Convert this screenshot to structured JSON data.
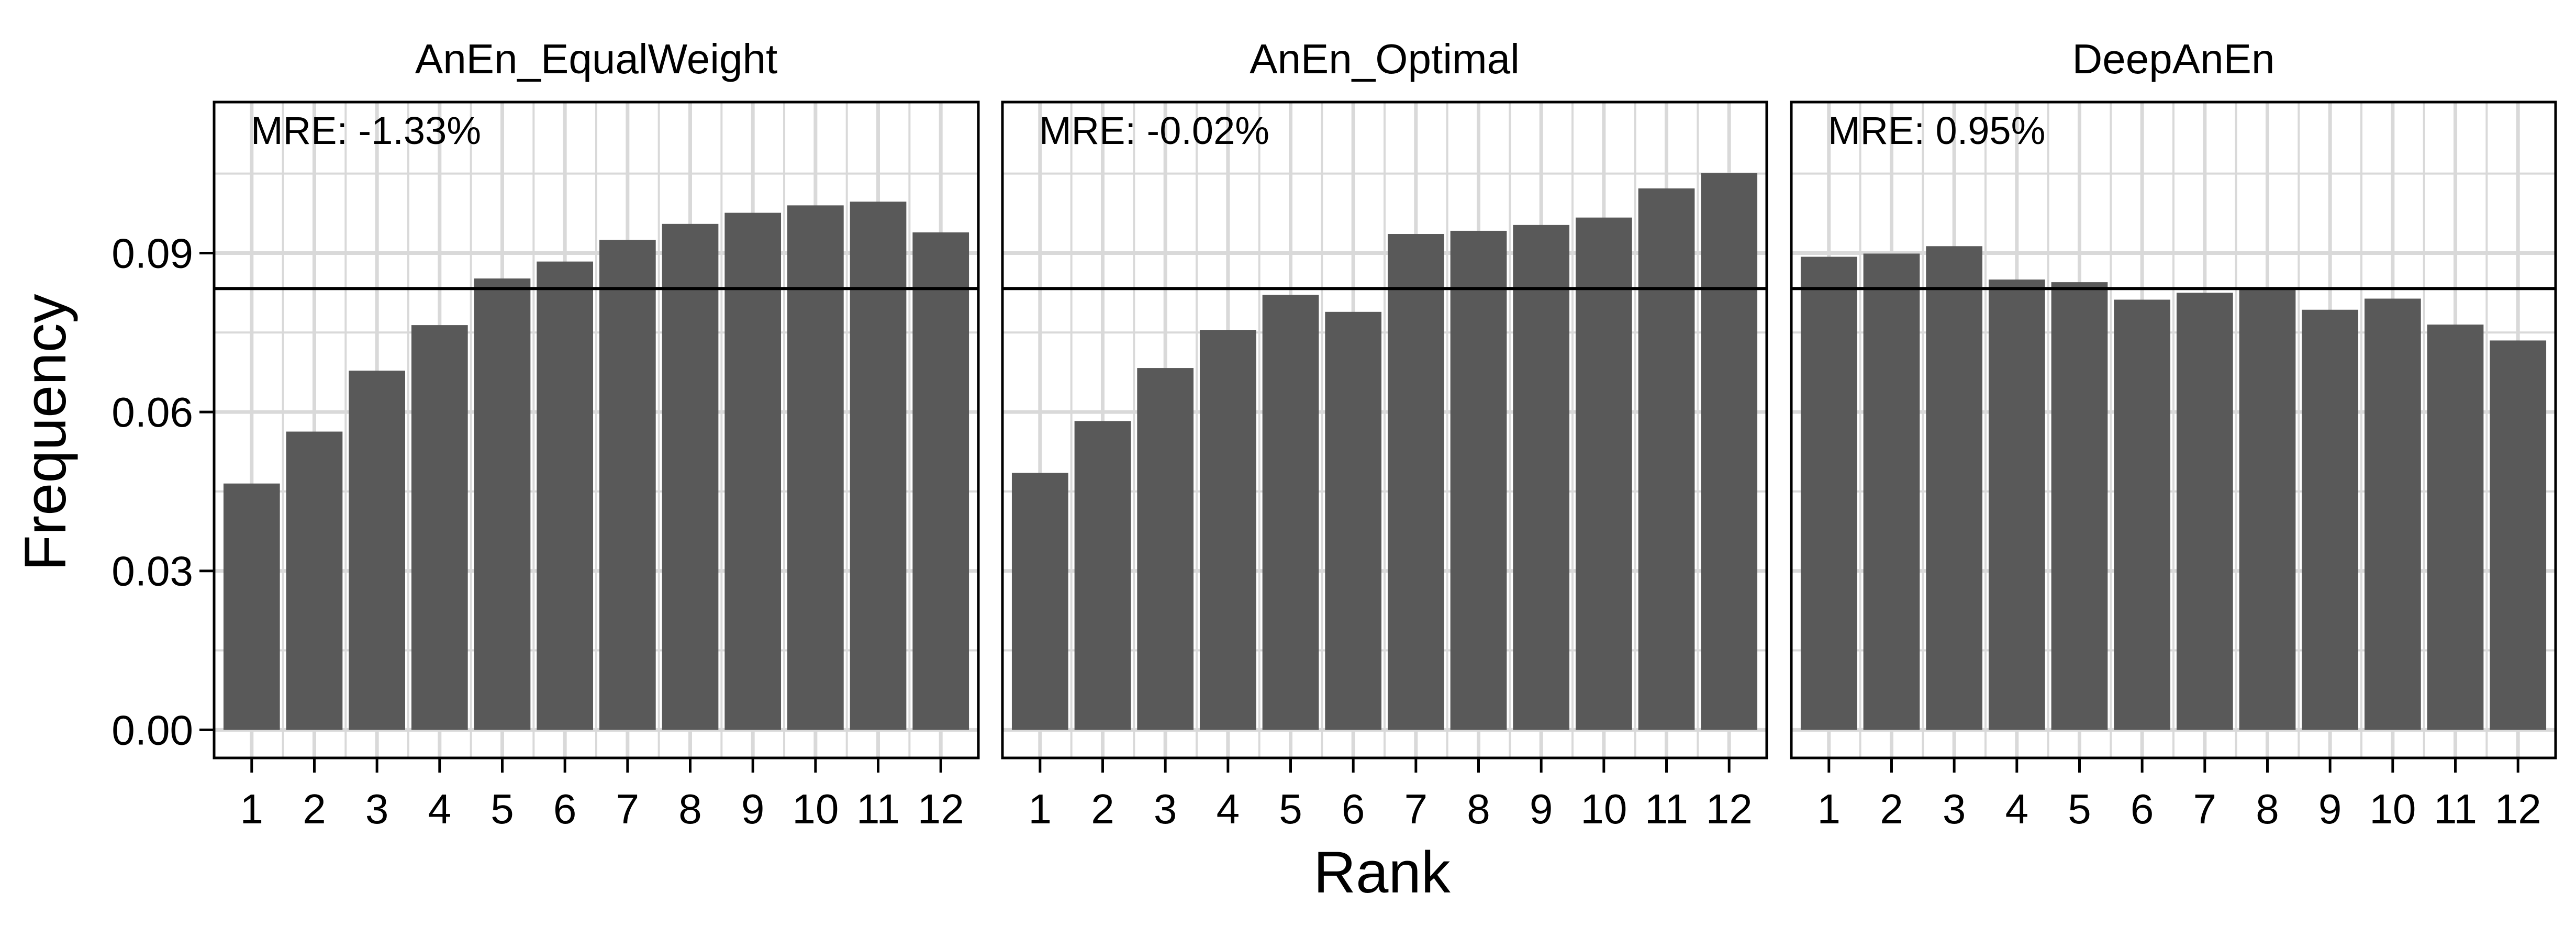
{
  "figure": {
    "xlabel": "Rank",
    "ylabel": "Frequency"
  },
  "chart_data": {
    "type": "bar",
    "xlabel": "Rank",
    "ylabel": "Frequency",
    "categories": [
      "1",
      "2",
      "3",
      "4",
      "5",
      "6",
      "7",
      "8",
      "9",
      "10",
      "11",
      "12"
    ],
    "ylim": [
      -0.0053,
      0.1185
    ],
    "yticks": [
      0.0,
      0.03,
      0.06,
      0.09
    ],
    "ytick_labels": [
      "0.00",
      "0.03",
      "0.06",
      "0.09"
    ],
    "reference_line": 0.0833,
    "grid": true,
    "bar_color": "#595959",
    "grid_color": "#d9d9d9",
    "panels": [
      {
        "title": "AnEn_EqualWeight",
        "annotation": "MRE: -1.33%",
        "values": [
          0.0465,
          0.0563,
          0.0678,
          0.0764,
          0.0852,
          0.0884,
          0.0925,
          0.0955,
          0.0976,
          0.099,
          0.0997,
          0.0939
        ]
      },
      {
        "title": "AnEn_Optimal",
        "annotation": "MRE: -0.02%",
        "values": [
          0.0485,
          0.0583,
          0.0683,
          0.0755,
          0.0821,
          0.0789,
          0.0936,
          0.0942,
          0.0953,
          0.0967,
          0.1022,
          0.1051
        ]
      },
      {
        "title": "DeepAnEn",
        "annotation": "MRE: 0.95%",
        "values": [
          0.0893,
          0.0899,
          0.0913,
          0.085,
          0.0845,
          0.0812,
          0.0825,
          0.0832,
          0.0793,
          0.0814,
          0.0765,
          0.0735
        ]
      }
    ]
  }
}
